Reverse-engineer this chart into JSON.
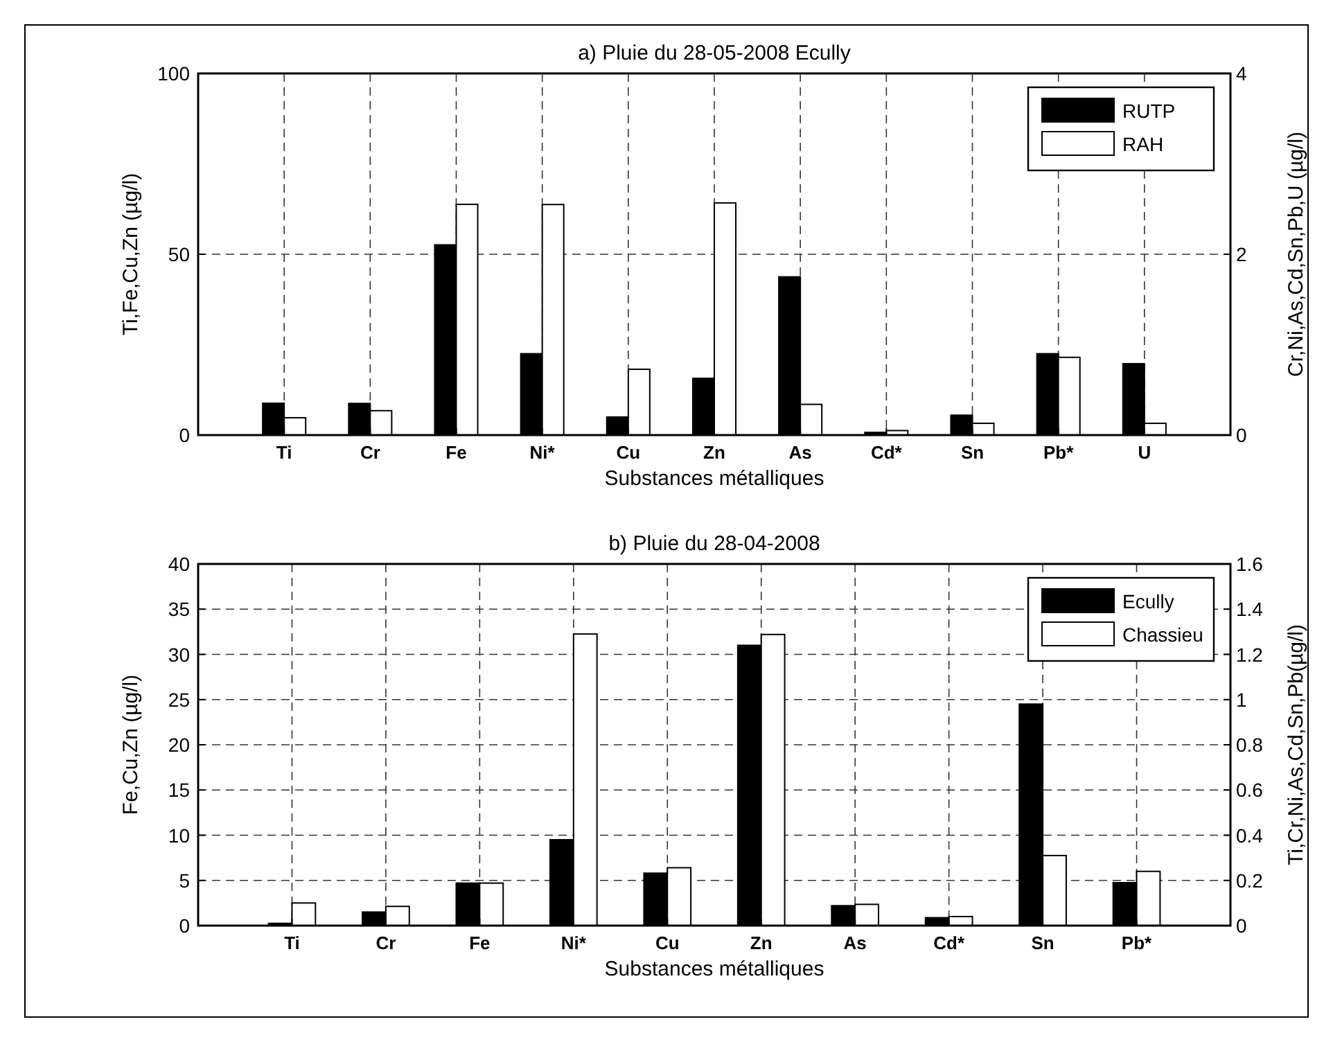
{
  "chart_data": [
    {
      "type": "bar",
      "title": "a) Pluie du 28-05-2008 Ecully",
      "xlabel": "Substances métalliques",
      "ylabel": "Ti,Fe,Cu,Zn (µg/l)",
      "y2label": "Cr,Ni,As,Cd,Sn,Pb,U (µg/l)",
      "categories": [
        "Ti",
        "Cr",
        "Fe",
        "Ni*",
        "Cu",
        "Zn",
        "As",
        "Cd*",
        "Sn",
        "Pb*",
        "U"
      ],
      "series": [
        {
          "name": "RUTP",
          "color": "#000000",
          "values": [
            8.8,
            null,
            52.6,
            null,
            5.0,
            15.7,
            null,
            null,
            null,
            null,
            null
          ]
        },
        {
          "name": "RAH",
          "color": "#ffffff",
          "values": [
            4.8,
            null,
            63.8,
            null,
            18.2,
            64.2,
            null,
            null,
            null,
            null,
            null
          ]
        },
        {
          "color": "#000000",
          "axis": "y2",
          "values": [
            null,
            0.35,
            null,
            0.9,
            null,
            null,
            1.75,
            0.03,
            0.22,
            0.9,
            0.79
          ]
        },
        {
          "color": "#ffffff",
          "axis": "y2",
          "values": [
            null,
            0.27,
            null,
            2.55,
            null,
            null,
            0.34,
            0.05,
            0.13,
            0.86,
            0.13
          ]
        }
      ],
      "ylim": [
        0,
        100
      ],
      "yticks": [
        0,
        50,
        100
      ],
      "y2lim": [
        0,
        4
      ],
      "y2ticks": [
        0,
        2,
        4
      ],
      "grid": true,
      "legend": "top right"
    },
    {
      "type": "bar",
      "title": "b) Pluie du 28-04-2008",
      "xlabel": "Substances métalliques",
      "ylabel": "Fe,Cu,Zn (µg/l)",
      "y2label": "Ti,Cr,Ni,As,Cd,Sn,Pb(µg/l)",
      "categories": [
        "Ti",
        "Cr",
        "Fe",
        "Ni*",
        "Cu",
        "Zn",
        "As",
        "Cd*",
        "Sn",
        "Pb*"
      ],
      "series": [
        {
          "name": "Ecully",
          "color": "#000000",
          "values": [
            null,
            null,
            4.7,
            null,
            5.8,
            31.0,
            null,
            null,
            null,
            null
          ]
        },
        {
          "name": "Chassieu",
          "color": "#ffffff",
          "values": [
            null,
            null,
            4.7,
            null,
            6.4,
            32.2,
            null,
            null,
            null,
            null
          ]
        },
        {
          "color": "#000000",
          "axis": "y2",
          "values": [
            0.01,
            0.06,
            null,
            0.38,
            null,
            null,
            0.088,
            0.035,
            0.98,
            0.19
          ]
        },
        {
          "color": "#ffffff",
          "axis": "y2",
          "values": [
            0.1,
            0.085,
            null,
            1.29,
            null,
            null,
            0.094,
            0.04,
            0.31,
            0.24
          ]
        }
      ],
      "ylim": [
        0,
        40
      ],
      "yticks": [
        0,
        5,
        10,
        15,
        20,
        25,
        30,
        35,
        40
      ],
      "y2lim": [
        0,
        1.6
      ],
      "y2ticks": [
        0,
        0.2,
        0.4,
        0.6,
        0.8,
        1,
        1.2,
        1.4,
        1.6
      ],
      "grid": true,
      "legend": "top right"
    }
  ]
}
